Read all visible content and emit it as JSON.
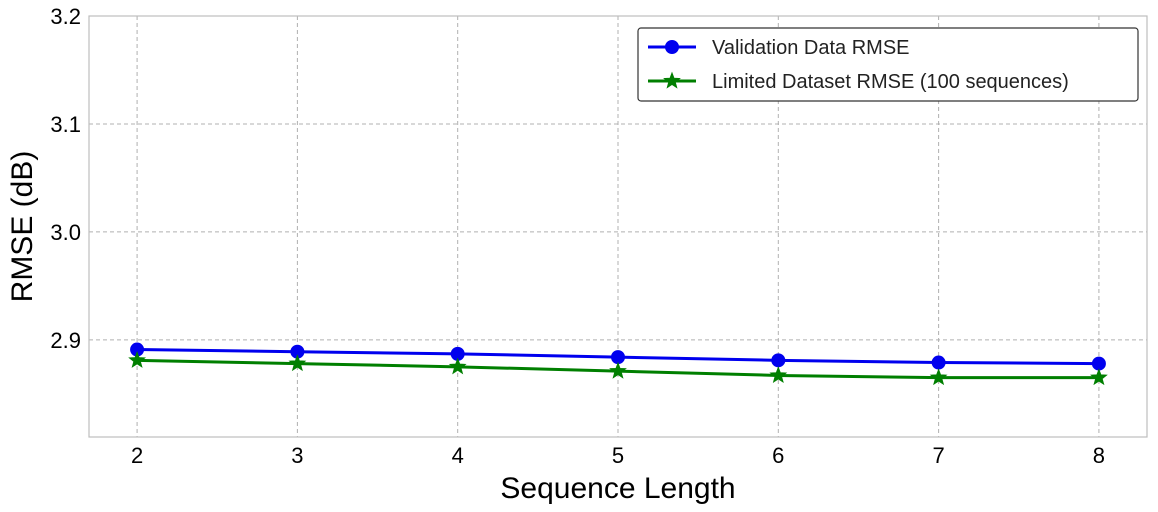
{
  "chart_data": {
    "type": "line",
    "title": "",
    "xlabel": "Sequence Length",
    "ylabel": "RMSE (dB)",
    "x": [
      2,
      3,
      4,
      5,
      6,
      7,
      8
    ],
    "xlim": [
      1.7,
      8.3
    ],
    "ylim": [
      2.81,
      3.2
    ],
    "x_ticks": [
      2,
      3,
      4,
      5,
      6,
      7,
      8
    ],
    "y_ticks": [
      2.9,
      3.0,
      3.1,
      3.2
    ],
    "y_tick_labels": [
      "2.9",
      "3.0",
      "3.1",
      "3.2"
    ],
    "grid": true,
    "legend_position": "top-right",
    "series": [
      {
        "name": "Validation Data RMSE",
        "color": "#0000ee",
        "marker": "circle",
        "values": [
          2.891,
          2.889,
          2.887,
          2.884,
          2.881,
          2.879,
          2.878
        ]
      },
      {
        "name": "Limited Dataset RMSE (100 sequences)",
        "color": "#007f00",
        "marker": "star",
        "values": [
          2.881,
          2.878,
          2.875,
          2.871,
          2.867,
          2.865,
          2.865
        ]
      }
    ]
  }
}
